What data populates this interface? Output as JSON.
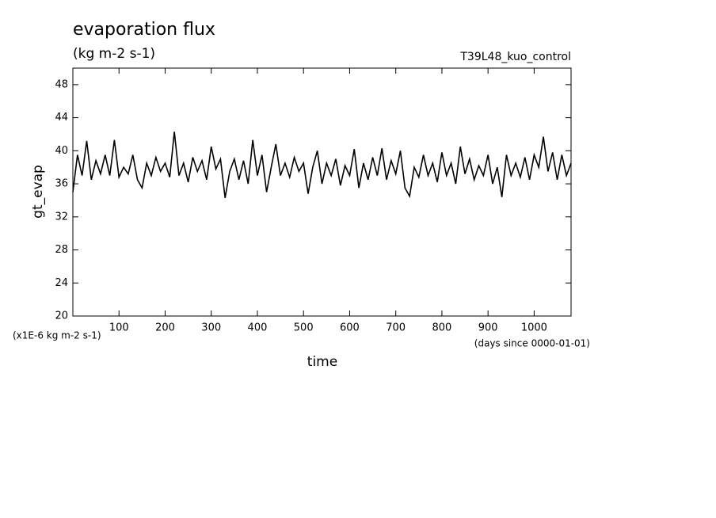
{
  "chart_data": {
    "type": "line",
    "title": "evaporation flux",
    "subtitle": "(kg m-2 s-1)",
    "annotation": "T39L48_kuo_control",
    "y_label": "gt_evap",
    "x_label": "time",
    "y_units": "(x1E-6 kg m-2 s-1)",
    "x_units": "(days since 0000-01-01)",
    "x": [
      0,
      10,
      20,
      30,
      40,
      50,
      60,
      70,
      80,
      90,
      100,
      110,
      120,
      130,
      140,
      150,
      160,
      170,
      180,
      190,
      200,
      210,
      220,
      230,
      240,
      250,
      260,
      270,
      280,
      290,
      300,
      310,
      320,
      330,
      340,
      350,
      360,
      370,
      380,
      390,
      400,
      410,
      420,
      430,
      440,
      450,
      460,
      470,
      480,
      490,
      500,
      510,
      520,
      530,
      540,
      550,
      560,
      570,
      580,
      590,
      600,
      610,
      620,
      630,
      640,
      650,
      660,
      670,
      680,
      690,
      700,
      710,
      720,
      730,
      740,
      750,
      760,
      770,
      780,
      790,
      800,
      810,
      820,
      830,
      840,
      850,
      860,
      870,
      880,
      890,
      900,
      910,
      920,
      930,
      940,
      950,
      960,
      970,
      980,
      990,
      1000,
      1010,
      1020,
      1030,
      1040,
      1050,
      1060,
      1070,
      1080
    ],
    "series": [
      {
        "color": "#000000",
        "values": [
          35,
          39.5,
          37,
          41.2,
          36.5,
          38.8,
          37.2,
          39.5,
          37,
          41.3,
          36.8,
          38,
          37.2,
          39.5,
          36.5,
          35.5,
          38.5,
          37,
          39.2,
          37.5,
          38.5,
          36.8,
          42.3,
          37,
          38.5,
          36.2,
          39.2,
          37.5,
          38.8,
          36.5,
          40.5,
          37.8,
          39,
          34.3,
          37.5,
          39,
          36.5,
          38.8,
          36,
          41.3,
          37,
          39.5,
          35,
          38,
          40.8,
          37,
          38.5,
          36.8,
          39.2,
          37.5,
          38.5,
          34.8,
          38,
          40,
          36,
          38.5,
          37,
          39,
          35.8,
          38.2,
          37,
          40.2,
          35.5,
          38.5,
          36.5,
          39.2,
          37,
          40.3,
          36.5,
          38.8,
          37.2,
          40,
          35.5,
          34.5,
          38,
          36.8,
          39.5,
          37,
          38.5,
          36.2,
          39.8,
          37,
          38.5,
          36,
          40.5,
          37.2,
          39,
          36.5,
          38.2,
          37,
          39.5,
          36,
          38,
          34.4,
          39.5,
          37,
          38.5,
          36.8,
          39.2,
          36.5,
          39.5,
          38,
          41.7,
          37.5,
          39.8,
          36.5,
          39.5,
          37,
          38.5
        ]
      }
    ],
    "xlim": [
      0,
      1080
    ],
    "xticks": [
      100,
      200,
      300,
      400,
      500,
      600,
      700,
      800,
      900,
      1000
    ],
    "ylim": [
      20,
      50
    ],
    "yticks": [
      20,
      24,
      28,
      32,
      36,
      40,
      44,
      48
    ]
  }
}
